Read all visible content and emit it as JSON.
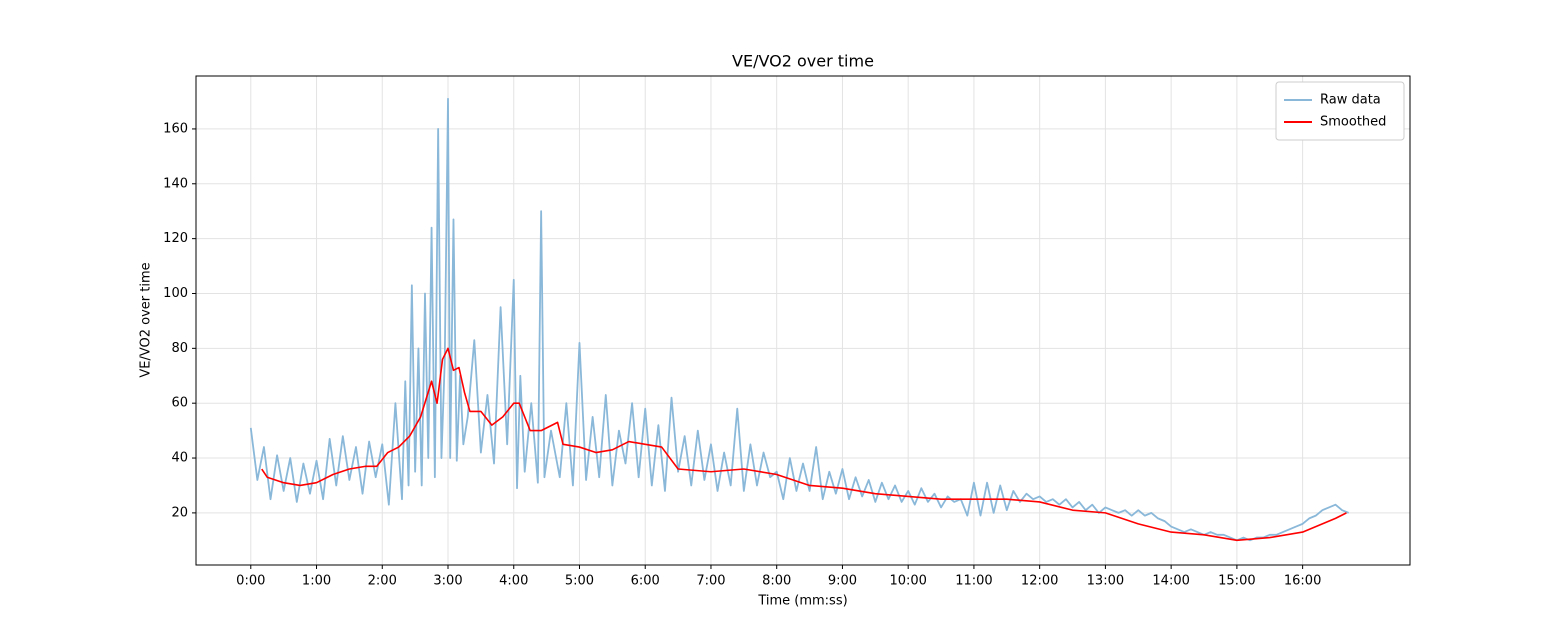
{
  "chart_data": {
    "type": "line",
    "title": "VE/VO2 over time",
    "xlabel": "Time (mm:ss)",
    "ylabel": "VE/VO2 over time",
    "xlim": [
      -50,
      1058
    ],
    "ylim": [
      1.0,
      179.3
    ],
    "grid": true,
    "legend": "upper right",
    "xticks": [
      {
        "value": 0,
        "label": "0:00"
      },
      {
        "value": 60,
        "label": "1:00"
      },
      {
        "value": 120,
        "label": "2:00"
      },
      {
        "value": 180,
        "label": "3:00"
      },
      {
        "value": 240,
        "label": "4:00"
      },
      {
        "value": 300,
        "label": "5:00"
      },
      {
        "value": 360,
        "label": "6:00"
      },
      {
        "value": 420,
        "label": "7:00"
      },
      {
        "value": 480,
        "label": "8:00"
      },
      {
        "value": 540,
        "label": "9:00"
      },
      {
        "value": 600,
        "label": "10:00"
      },
      {
        "value": 660,
        "label": "11:00"
      },
      {
        "value": 720,
        "label": "12:00"
      },
      {
        "value": 780,
        "label": "13:00"
      },
      {
        "value": 840,
        "label": "14:00"
      },
      {
        "value": 900,
        "label": "15:00"
      },
      {
        "value": 960,
        "label": "16:00"
      }
    ],
    "yticks": [
      20,
      40,
      60,
      80,
      100,
      120,
      140,
      160
    ],
    "series": [
      {
        "name": "Raw data",
        "color": "#8ab8d9",
        "x": [
          0,
          6,
          12,
          18,
          24,
          30,
          36,
          42,
          48,
          54,
          60,
          66,
          72,
          78,
          84,
          90,
          96,
          102,
          108,
          114,
          120,
          126,
          132,
          138,
          141,
          144,
          147,
          150,
          153,
          156,
          159,
          162,
          165,
          168,
          171,
          174,
          177,
          180,
          182,
          185,
          188,
          191,
          194,
          198,
          204,
          210,
          216,
          222,
          228,
          234,
          240,
          243,
          246,
          250,
          256,
          262,
          265,
          268,
          274,
          282,
          288,
          294,
          300,
          306,
          312,
          318,
          324,
          330,
          336,
          342,
          348,
          354,
          360,
          366,
          372,
          378,
          384,
          390,
          396,
          402,
          408,
          414,
          420,
          426,
          432,
          438,
          444,
          450,
          456,
          462,
          468,
          474,
          480,
          486,
          492,
          498,
          504,
          510,
          516,
          522,
          528,
          534,
          540,
          546,
          552,
          558,
          564,
          570,
          576,
          582,
          588,
          594,
          600,
          606,
          612,
          618,
          624,
          630,
          636,
          642,
          648,
          654,
          660,
          666,
          672,
          678,
          684,
          690,
          696,
          702,
          708,
          714,
          720,
          726,
          732,
          738,
          744,
          750,
          756,
          762,
          768,
          774,
          780,
          786,
          792,
          798,
          804,
          810,
          816,
          822,
          828,
          834,
          840,
          846,
          852,
          858,
          864,
          870,
          876,
          882,
          888,
          894,
          900,
          906,
          912,
          918,
          924,
          930,
          936,
          942,
          948,
          954,
          960,
          966,
          972,
          978,
          984,
          990,
          996,
          1002
        ],
        "values": [
          51,
          32,
          44,
          25,
          41,
          28,
          40,
          24,
          38,
          27,
          39,
          25,
          47,
          30,
          48,
          32,
          44,
          27,
          46,
          33,
          45,
          23,
          60,
          25,
          68,
          30,
          103,
          35,
          80,
          30,
          100,
          40,
          124,
          33,
          160,
          40,
          75,
          171,
          40,
          127,
          39,
          70,
          45,
          55,
          83,
          42,
          63,
          38,
          95,
          45,
          105,
          29,
          70,
          35,
          60,
          31,
          130,
          33,
          50,
          33,
          60,
          30,
          82,
          32,
          55,
          33,
          63,
          30,
          50,
          38,
          60,
          33,
          58,
          30,
          52,
          28,
          62,
          35,
          48,
          30,
          50,
          32,
          45,
          28,
          42,
          30,
          58,
          28,
          45,
          30,
          42,
          33,
          35,
          25,
          40,
          28,
          38,
          28,
          44,
          25,
          35,
          27,
          36,
          25,
          33,
          26,
          32,
          24,
          31,
          25,
          30,
          24,
          28,
          23,
          29,
          24,
          27,
          22,
          26,
          24,
          25,
          19,
          31,
          19,
          31,
          20,
          30,
          21,
          28,
          24,
          27,
          25,
          26,
          24,
          25,
          23,
          25,
          22,
          24,
          21,
          23,
          20,
          22,
          21,
          20,
          21,
          19,
          21,
          19,
          20,
          18,
          17,
          15,
          14,
          13,
          14,
          13,
          12,
          13,
          12,
          12,
          11,
          10,
          11,
          10,
          11,
          11,
          12,
          12,
          13,
          14,
          15,
          16,
          18,
          19,
          21,
          22,
          23,
          21,
          20
        ]
      },
      {
        "name": "Smoothed",
        "color": "#ff0000",
        "x": [
          10,
          15,
          30,
          45,
          60,
          75,
          90,
          105,
          115,
          125,
          135,
          145,
          155,
          165,
          170,
          175,
          180,
          185,
          190,
          195,
          200,
          210,
          220,
          230,
          240,
          245,
          255,
          265,
          275,
          280,
          285,
          300,
          315,
          330,
          345,
          360,
          375,
          390,
          420,
          450,
          480,
          510,
          540,
          570,
          600,
          630,
          660,
          690,
          720,
          750,
          780,
          810,
          840,
          870,
          900,
          930,
          960,
          990,
          1000
        ],
        "values": [
          36,
          33,
          31,
          30,
          31,
          34,
          36,
          37,
          37,
          42,
          44,
          48,
          55,
          68,
          60,
          76,
          80,
          72,
          73,
          64,
          57,
          57,
          52,
          55,
          60,
          60,
          50,
          50,
          52,
          53,
          45,
          44,
          42,
          43,
          46,
          45,
          44,
          36,
          35,
          36,
          34,
          30,
          29,
          27,
          26,
          25,
          25,
          25,
          24,
          21,
          20,
          16,
          13,
          12,
          10,
          11,
          13,
          18,
          20
        ]
      }
    ]
  }
}
